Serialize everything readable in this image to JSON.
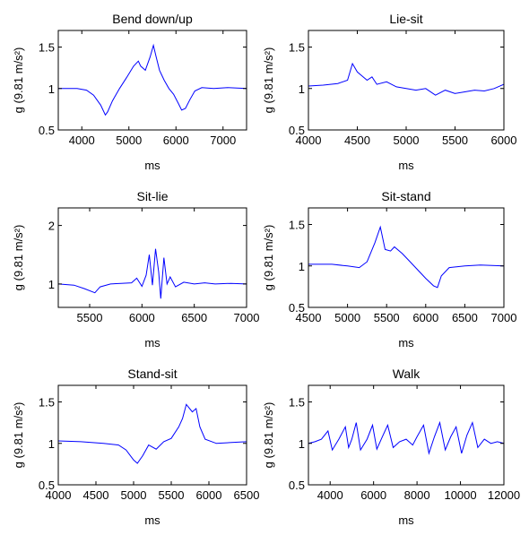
{
  "chart_data": [
    {
      "type": "line",
      "title": "Bend down/up",
      "xlabel": "ms",
      "ylabel": "g (9.81 m/s²)",
      "xlim": [
        3500,
        7500
      ],
      "ylim": [
        0.5,
        1.7
      ],
      "xticks": [
        4000,
        5000,
        6000,
        7000
      ],
      "yticks": [
        0.5,
        1,
        1.5
      ],
      "series": [
        {
          "color": "#0000ff",
          "points": [
            [
              3500,
              1.0
            ],
            [
              3700,
              1.0
            ],
            [
              3900,
              1.0
            ],
            [
              4100,
              0.98
            ],
            [
              4250,
              0.92
            ],
            [
              4400,
              0.8
            ],
            [
              4500,
              0.68
            ],
            [
              4550,
              0.72
            ],
            [
              4650,
              0.85
            ],
            [
              4800,
              1.0
            ],
            [
              4950,
              1.13
            ],
            [
              5100,
              1.27
            ],
            [
              5200,
              1.33
            ],
            [
              5250,
              1.27
            ],
            [
              5350,
              1.22
            ],
            [
              5450,
              1.38
            ],
            [
              5520,
              1.52
            ],
            [
              5580,
              1.38
            ],
            [
              5650,
              1.22
            ],
            [
              5750,
              1.1
            ],
            [
              5850,
              1.0
            ],
            [
              5950,
              0.93
            ],
            [
              6050,
              0.82
            ],
            [
              6120,
              0.74
            ],
            [
              6200,
              0.76
            ],
            [
              6300,
              0.87
            ],
            [
              6400,
              0.97
            ],
            [
              6550,
              1.01
            ],
            [
              6800,
              1.0
            ],
            [
              7100,
              1.01
            ],
            [
              7500,
              1.0
            ]
          ]
        }
      ]
    },
    {
      "type": "line",
      "title": "Lie-sit",
      "xlabel": "ms",
      "ylabel": "g (9.81 m/s²)",
      "xlim": [
        4000,
        6000
      ],
      "ylim": [
        0.5,
        1.7
      ],
      "xticks": [
        4000,
        4500,
        5000,
        5500,
        6000
      ],
      "yticks": [
        0.5,
        1,
        1.5
      ],
      "series": [
        {
          "color": "#0000ff",
          "points": [
            [
              4000,
              1.03
            ],
            [
              4150,
              1.04
            ],
            [
              4300,
              1.06
            ],
            [
              4400,
              1.1
            ],
            [
              4450,
              1.3
            ],
            [
              4500,
              1.2
            ],
            [
              4550,
              1.15
            ],
            [
              4600,
              1.1
            ],
            [
              4650,
              1.14
            ],
            [
              4700,
              1.05
            ],
            [
              4800,
              1.08
            ],
            [
              4900,
              1.02
            ],
            [
              5000,
              1.0
            ],
            [
              5100,
              0.98
            ],
            [
              5200,
              1.0
            ],
            [
              5300,
              0.92
            ],
            [
              5400,
              0.98
            ],
            [
              5500,
              0.94
            ],
            [
              5600,
              0.96
            ],
            [
              5700,
              0.98
            ],
            [
              5800,
              0.97
            ],
            [
              5900,
              1.0
            ],
            [
              6000,
              1.05
            ]
          ]
        }
      ]
    },
    {
      "type": "line",
      "title": "Sit-lie",
      "xlabel": "ms",
      "ylabel": "g (9.81 m/s²)",
      "xlim": [
        5200,
        7000
      ],
      "ylim": [
        0.6,
        2.3
      ],
      "xticks": [
        5500,
        6000,
        6500,
        7000
      ],
      "yticks": [
        1,
        2
      ],
      "series": [
        {
          "color": "#0000ff",
          "points": [
            [
              5200,
              1.0
            ],
            [
              5350,
              0.98
            ],
            [
              5450,
              0.92
            ],
            [
              5550,
              0.85
            ],
            [
              5600,
              0.95
            ],
            [
              5700,
              1.0
            ],
            [
              5800,
              1.01
            ],
            [
              5900,
              1.02
            ],
            [
              5950,
              1.1
            ],
            [
              6000,
              0.96
            ],
            [
              6040,
              1.15
            ],
            [
              6070,
              1.5
            ],
            [
              6100,
              0.98
            ],
            [
              6130,
              1.6
            ],
            [
              6160,
              1.2
            ],
            [
              6180,
              0.75
            ],
            [
              6210,
              1.45
            ],
            [
              6240,
              1.0
            ],
            [
              6270,
              1.12
            ],
            [
              6320,
              0.95
            ],
            [
              6400,
              1.03
            ],
            [
              6500,
              1.0
            ],
            [
              6600,
              1.02
            ],
            [
              6700,
              1.0
            ],
            [
              6850,
              1.01
            ],
            [
              7000,
              1.0
            ]
          ]
        }
      ]
    },
    {
      "type": "line",
      "title": "Sit-stand",
      "xlabel": "ms",
      "ylabel": "g (9.81 m/s²)",
      "xlim": [
        4500,
        7000
      ],
      "ylim": [
        0.5,
        1.7
      ],
      "xticks": [
        4500,
        5000,
        5500,
        6000,
        6500,
        7000
      ],
      "yticks": [
        0.5,
        1,
        1.5
      ],
      "series": [
        {
          "color": "#0000ff",
          "points": [
            [
              4500,
              1.02
            ],
            [
              4800,
              1.02
            ],
            [
              5000,
              1.0
            ],
            [
              5150,
              0.98
            ],
            [
              5250,
              1.05
            ],
            [
              5350,
              1.28
            ],
            [
              5420,
              1.47
            ],
            [
              5480,
              1.2
            ],
            [
              5550,
              1.18
            ],
            [
              5600,
              1.23
            ],
            [
              5700,
              1.15
            ],
            [
              5800,
              1.05
            ],
            [
              5900,
              0.95
            ],
            [
              6000,
              0.85
            ],
            [
              6100,
              0.76
            ],
            [
              6150,
              0.74
            ],
            [
              6200,
              0.88
            ],
            [
              6300,
              0.98
            ],
            [
              6500,
              1.0
            ],
            [
              6700,
              1.01
            ],
            [
              7000,
              1.0
            ]
          ]
        }
      ]
    },
    {
      "type": "line",
      "title": "Stand-sit",
      "xlabel": "ms",
      "ylabel": "g (9.81 m/s²)",
      "xlim": [
        4000,
        6500
      ],
      "ylim": [
        0.5,
        1.7
      ],
      "xticks": [
        4000,
        4500,
        5000,
        5500,
        6000,
        6500
      ],
      "yticks": [
        0.5,
        1,
        1.5
      ],
      "series": [
        {
          "color": "#0000ff",
          "points": [
            [
              4000,
              1.03
            ],
            [
              4300,
              1.02
            ],
            [
              4600,
              1.0
            ],
            [
              4800,
              0.98
            ],
            [
              4900,
              0.92
            ],
            [
              5000,
              0.8
            ],
            [
              5050,
              0.76
            ],
            [
              5120,
              0.85
            ],
            [
              5200,
              0.98
            ],
            [
              5300,
              0.93
            ],
            [
              5400,
              1.02
            ],
            [
              5500,
              1.06
            ],
            [
              5600,
              1.2
            ],
            [
              5650,
              1.3
            ],
            [
              5700,
              1.47
            ],
            [
              5780,
              1.38
            ],
            [
              5830,
              1.42
            ],
            [
              5880,
              1.2
            ],
            [
              5950,
              1.05
            ],
            [
              6100,
              1.0
            ],
            [
              6300,
              1.01
            ],
            [
              6500,
              1.02
            ]
          ]
        }
      ]
    },
    {
      "type": "line",
      "title": "Walk",
      "xlabel": "ms",
      "ylabel": "g (9.81 m/s²)",
      "xlim": [
        3000,
        12000
      ],
      "ylim": [
        0.5,
        1.7
      ],
      "xticks": [
        4000,
        6000,
        8000,
        10000,
        12000
      ],
      "yticks": [
        0.5,
        1,
        1.5
      ],
      "series": [
        {
          "color": "#0000ff",
          "points": [
            [
              3000,
              1.0
            ],
            [
              3300,
              1.02
            ],
            [
              3600,
              1.05
            ],
            [
              3900,
              1.15
            ],
            [
              4100,
              0.92
            ],
            [
              4400,
              1.05
            ],
            [
              4700,
              1.2
            ],
            [
              4850,
              0.95
            ],
            [
              5000,
              1.05
            ],
            [
              5200,
              1.25
            ],
            [
              5400,
              0.92
            ],
            [
              5700,
              1.05
            ],
            [
              5950,
              1.22
            ],
            [
              6150,
              0.93
            ],
            [
              6400,
              1.08
            ],
            [
              6650,
              1.22
            ],
            [
              6900,
              0.95
            ],
            [
              7200,
              1.02
            ],
            [
              7500,
              1.05
            ],
            [
              7800,
              0.98
            ],
            [
              8000,
              1.08
            ],
            [
              8300,
              1.22
            ],
            [
              8550,
              0.88
            ],
            [
              8800,
              1.08
            ],
            [
              9050,
              1.25
            ],
            [
              9300,
              0.92
            ],
            [
              9550,
              1.08
            ],
            [
              9800,
              1.2
            ],
            [
              10050,
              0.88
            ],
            [
              10300,
              1.1
            ],
            [
              10550,
              1.25
            ],
            [
              10800,
              0.95
            ],
            [
              11100,
              1.05
            ],
            [
              11400,
              1.0
            ],
            [
              11700,
              1.02
            ],
            [
              12000,
              1.0
            ]
          ]
        }
      ]
    }
  ]
}
